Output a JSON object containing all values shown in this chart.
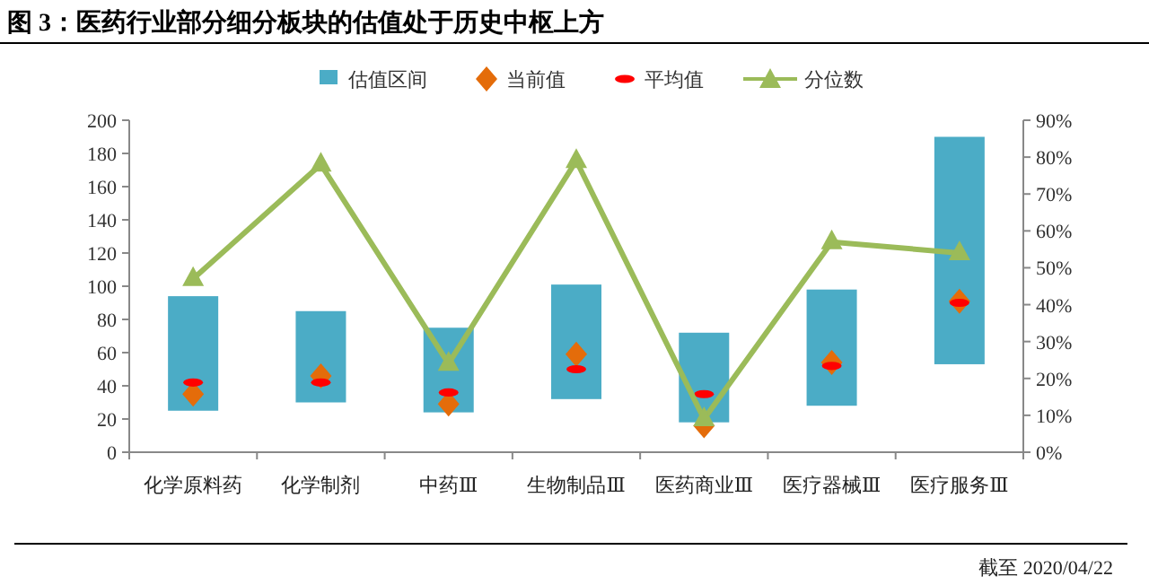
{
  "chart_data": {
    "type": "bar",
    "title": "图 3：医药行业部分细分板块的估值处于历史中枢上方",
    "categories": [
      "化学原料药",
      "化学制剂",
      "中药Ⅲ",
      "生物制品Ⅲ",
      "医药商业Ⅲ",
      "医疗器械Ⅲ",
      "医疗服务Ⅲ"
    ],
    "series": [
      {
        "name": "估值区间",
        "color": "#4bacc6",
        "base": [
          25,
          30,
          24,
          32,
          18,
          28,
          53
        ],
        "values": [
          69,
          55,
          51,
          69,
          54,
          70,
          137
        ]
      },
      {
        "name": "当前值",
        "type": "scatter",
        "marker": "diamond",
        "color": "#e46c0a",
        "values": [
          35,
          46,
          29,
          59,
          16,
          54,
          91
        ]
      },
      {
        "name": "平均值",
        "type": "scatter",
        "color": "#ff0000",
        "values": [
          42,
          42,
          36,
          50,
          35,
          52,
          90
        ]
      },
      {
        "name": "分位数",
        "type": "line",
        "axis": "y2",
        "marker": "triangle",
        "color": "#9bbb59",
        "values": [
          47,
          78,
          24,
          79,
          9,
          57,
          54
        ]
      }
    ],
    "ylim": [
      0,
      200
    ],
    "yticks": [
      0,
      20,
      40,
      60,
      80,
      100,
      120,
      140,
      160,
      180,
      200
    ],
    "y2lim": [
      0,
      90
    ],
    "y2ticks": [
      {
        "value": 0,
        "label": "0%"
      },
      {
        "value": 10,
        "label": "10%"
      },
      {
        "value": 20,
        "label": "20%"
      },
      {
        "value": 30,
        "label": "30%"
      },
      {
        "value": 40,
        "label": "40%"
      },
      {
        "value": 50,
        "label": "50%"
      },
      {
        "value": 60,
        "label": "60%"
      },
      {
        "value": 70,
        "label": "70%"
      },
      {
        "value": 80,
        "label": "80%"
      },
      {
        "value": 90,
        "label": "90%"
      }
    ],
    "legend": "top",
    "grid": false,
    "annotations": [
      "截至 2020/04/22"
    ]
  }
}
